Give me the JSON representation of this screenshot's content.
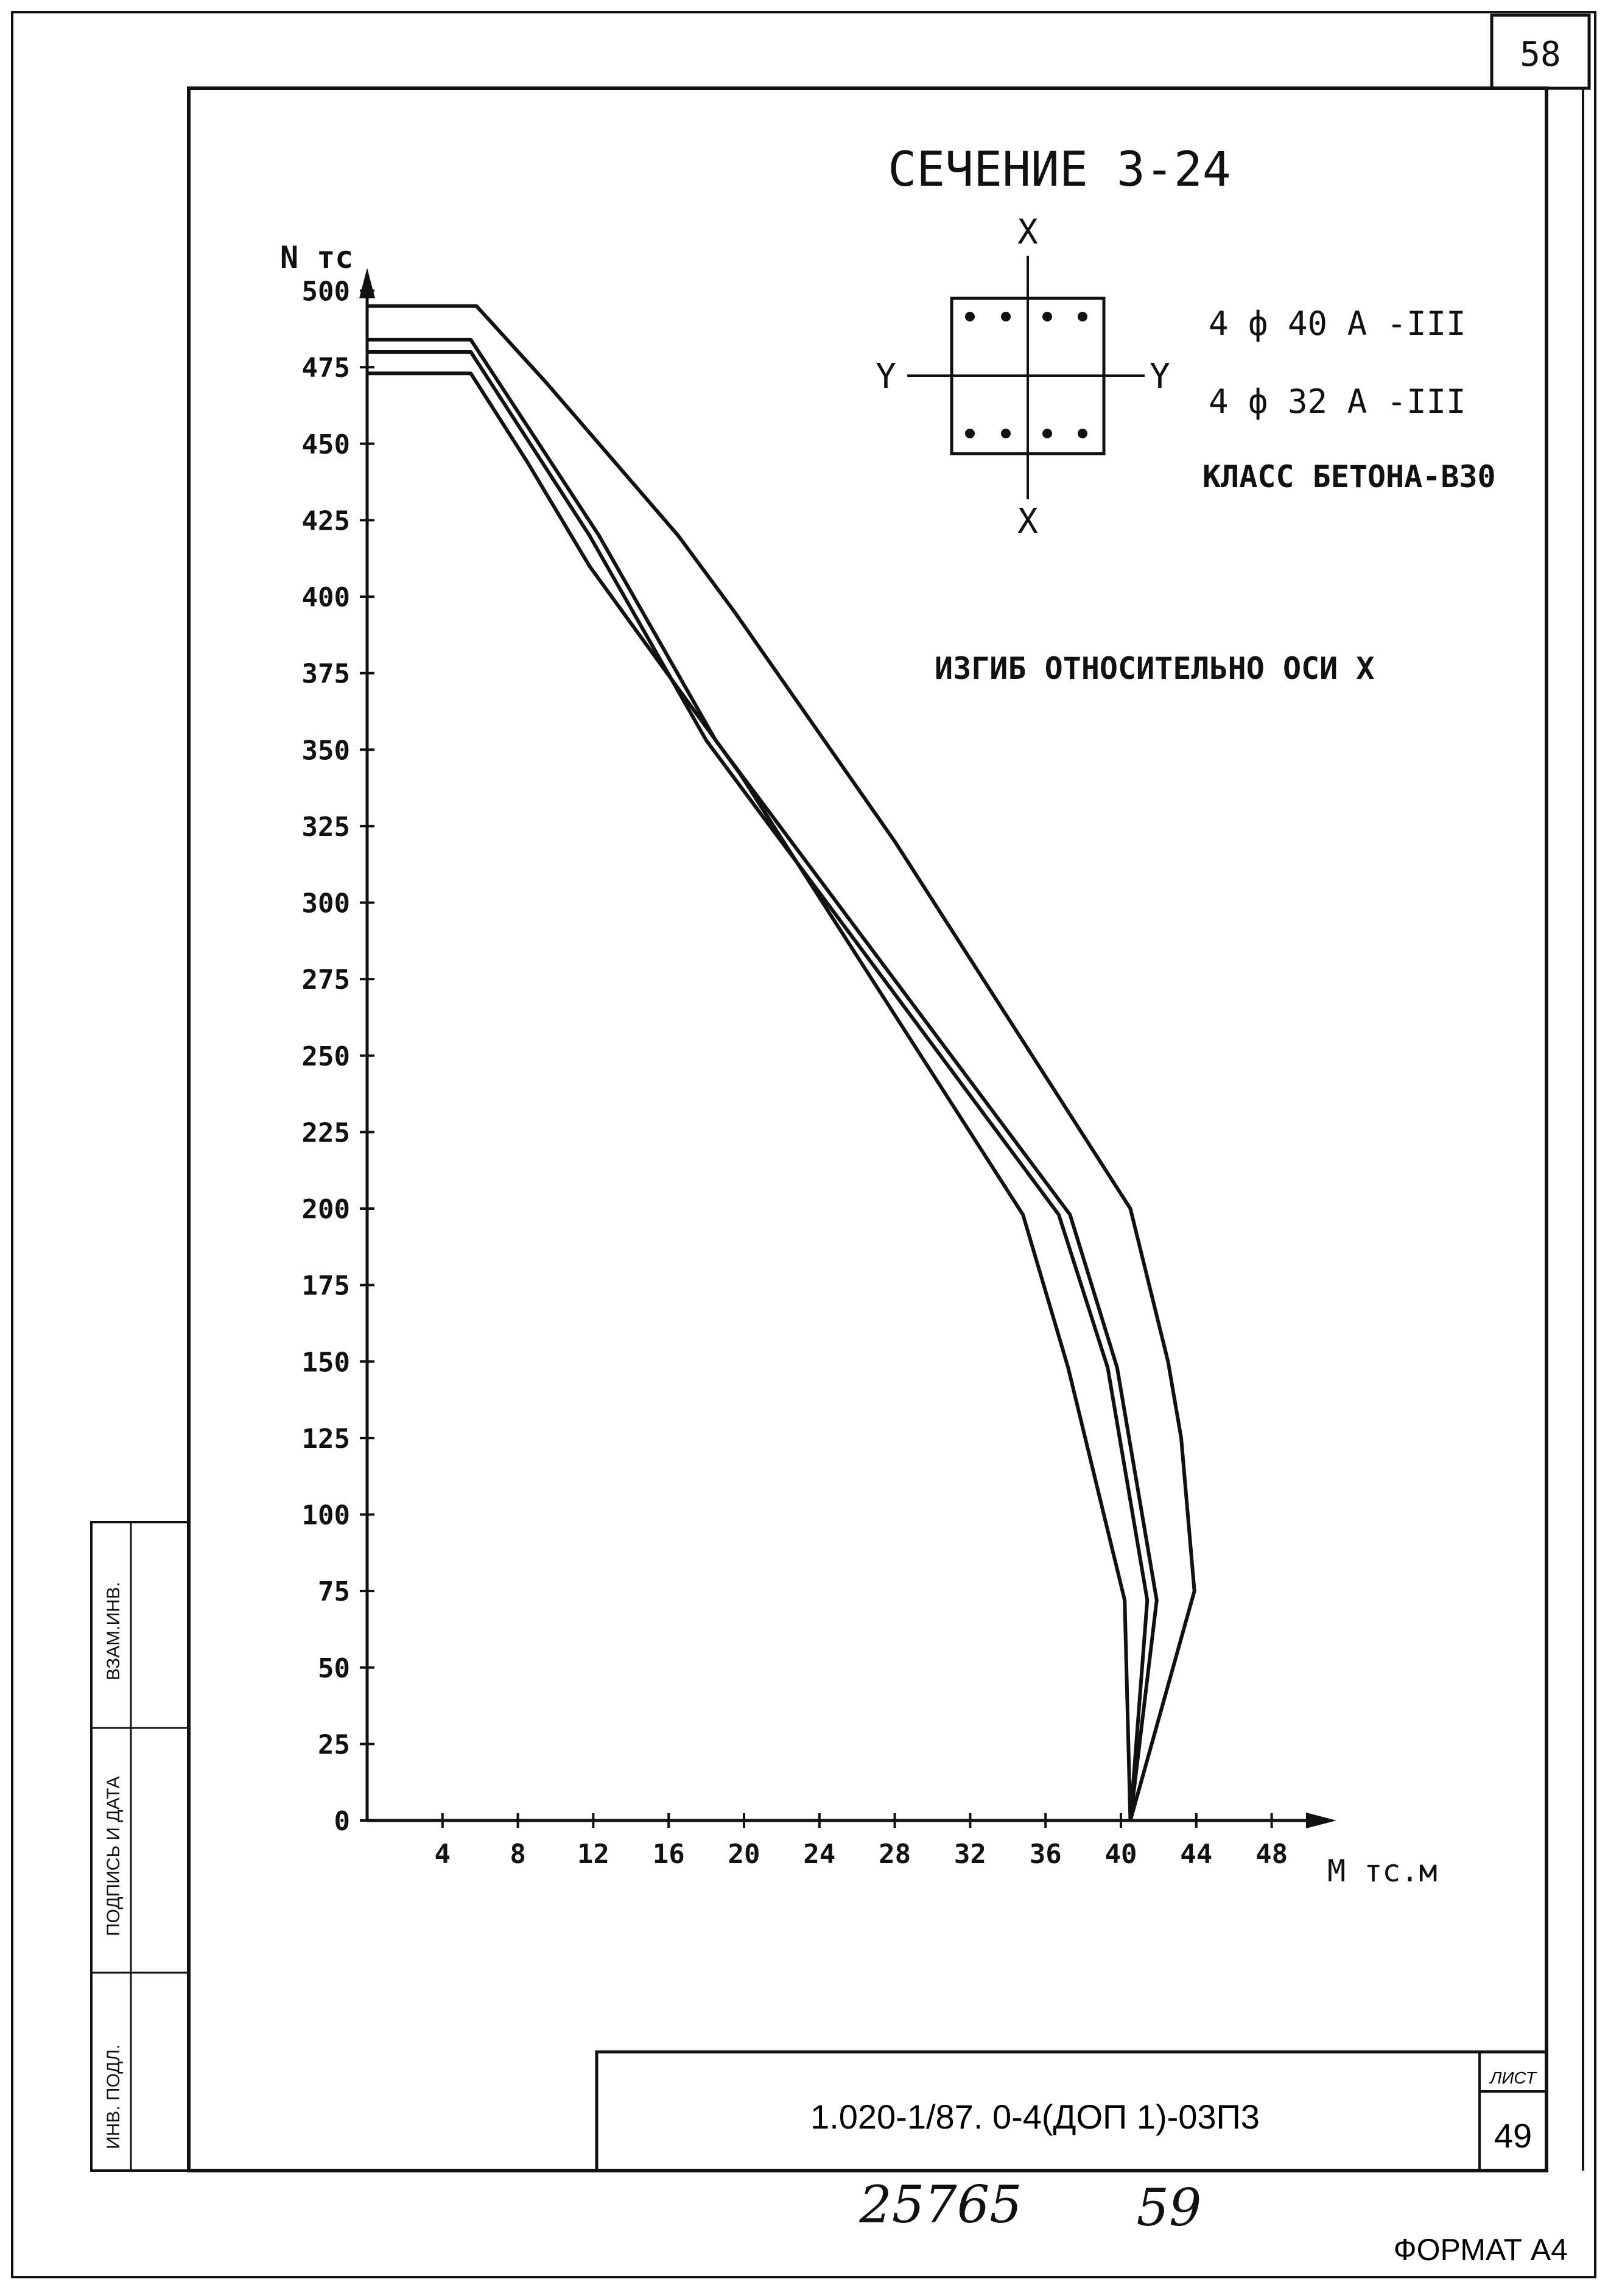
{
  "sheet": {
    "page_number": "58",
    "sheet_label": "ЛИСТ",
    "sheet_number": "49",
    "document_code": "1.020-1/87. 0-4(ДОП 1)-03П3",
    "handwritten_1": "25765",
    "handwritten_2": "59",
    "format_label": "ФОРМАТ А4",
    "stamp_labels": [
      "ВЗАМ.ИНВ.",
      "ПОДПИСЬ И ДАТА",
      "ИНВ. ПОДЛ."
    ]
  },
  "section": {
    "title": "СЕЧЕНИЕ 3-24",
    "axis_x_top": "X",
    "axis_x_bottom": "X",
    "axis_y_left": "Y",
    "axis_y_right": "Y",
    "rebar_1": "4 ф 40 А -III",
    "rebar_2": "4 ф 32 А -III",
    "concrete_class": "КЛАСС БЕТОНА-В30",
    "bending_note": "ИЗГИБ ОТНОСИТЕЛЬНО ОСИ X"
  },
  "chart_data": {
    "type": "line",
    "title": "",
    "xlabel": "М тс.м",
    "ylabel": "N тс",
    "xlim": [
      0,
      48
    ],
    "ylim": [
      0,
      500
    ],
    "xticks": [
      4,
      8,
      12,
      16,
      20,
      24,
      28,
      32,
      36,
      40,
      44,
      48
    ],
    "yticks": [
      0,
      25,
      50,
      75,
      100,
      125,
      150,
      175,
      200,
      225,
      250,
      275,
      300,
      325,
      350,
      375,
      400,
      425,
      450,
      475,
      500
    ],
    "grid": false,
    "series": [
      {
        "x": [
          0,
          5.8,
          9.5,
          16.5,
          19.5,
          28,
          40.5,
          42.5,
          43.2,
          43.9,
          40.5
        ],
        "y": [
          495,
          495,
          470,
          420,
          395,
          320,
          200,
          150,
          125,
          75,
          0
        ]
      },
      {
        "x": [
          0,
          5.5,
          12.3,
          18.5,
          37.3,
          39.8,
          41.9,
          40.5
        ],
        "y": [
          484,
          484,
          420,
          353,
          198,
          148,
          72,
          0
        ]
      },
      {
        "x": [
          0,
          5.5,
          11.8,
          18,
          36.7,
          39.3,
          41.4,
          40.5
        ],
        "y": [
          480,
          480,
          420,
          353,
          198,
          148,
          72,
          0
        ]
      },
      {
        "x": [
          0,
          5.5,
          8.5,
          11.8,
          19.8,
          34.8,
          37.2,
          40.2,
          40.5
        ],
        "y": [
          473,
          473,
          444,
          410,
          342,
          198,
          148,
          72,
          0
        ]
      }
    ]
  }
}
